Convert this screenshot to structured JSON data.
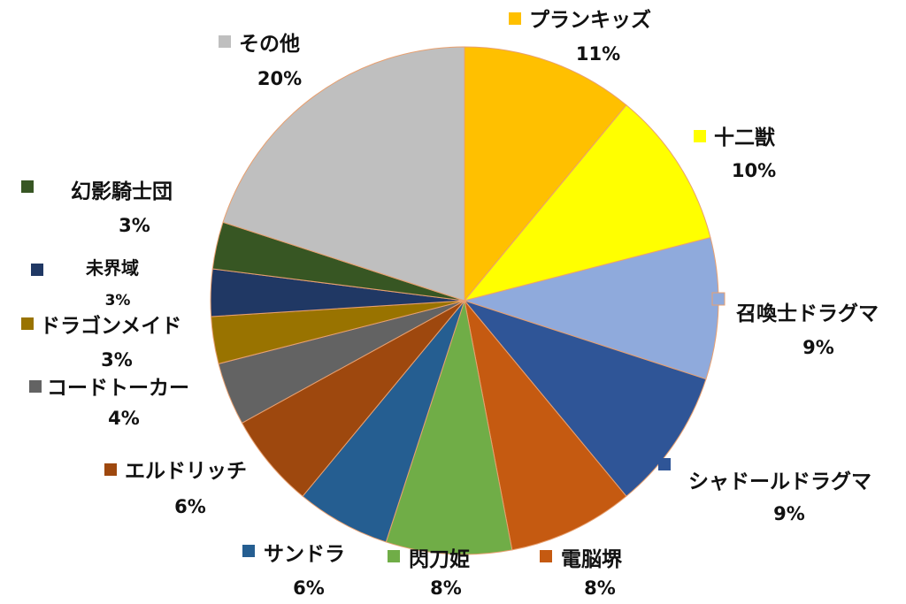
{
  "chart_data": {
    "type": "pie",
    "title": "",
    "slices": [
      {
        "label": "プランキッズ",
        "value": 11,
        "pct_label": "11%",
        "color": "#FFC000"
      },
      {
        "label": "十二獣",
        "value": 10,
        "pct_label": "10%",
        "color": "#FFFF00"
      },
      {
        "label": "召喚士ドラグマ",
        "value": 9,
        "pct_label": "9%",
        "color": "#8FAADC"
      },
      {
        "label": "シャドールドラグマ",
        "value": 9,
        "pct_label": "9%",
        "color": "#2F5597"
      },
      {
        "label": "電脳堺",
        "value": 8,
        "pct_label": "8%",
        "color": "#C55A11"
      },
      {
        "label": "閃刀姫",
        "value": 8,
        "pct_label": "8%",
        "color": "#70AD47"
      },
      {
        "label": "サンドラ",
        "value": 6,
        "pct_label": "6%",
        "color": "#255E91"
      },
      {
        "label": "エルドリッチ",
        "value": 6,
        "pct_label": "6%",
        "color": "#9E480E"
      },
      {
        "label": "コードトーカー",
        "value": 4,
        "pct_label": "4%",
        "color": "#636363"
      },
      {
        "label": "ドラゴンメイド",
        "value": 3,
        "pct_label": "3%",
        "color": "#997300"
      },
      {
        "label": "未界域",
        "value": 3,
        "pct_label": "3%",
        "color": "#203864"
      },
      {
        "label": "幻影騎士団",
        "value": 3,
        "pct_label": "3%",
        "color": "#375623"
      },
      {
        "label": "その他",
        "value": 20,
        "pct_label": "20%",
        "color": "#BFBFBF"
      }
    ],
    "start": "top",
    "direction": "clockwise",
    "legend": "data-labels-outside"
  }
}
